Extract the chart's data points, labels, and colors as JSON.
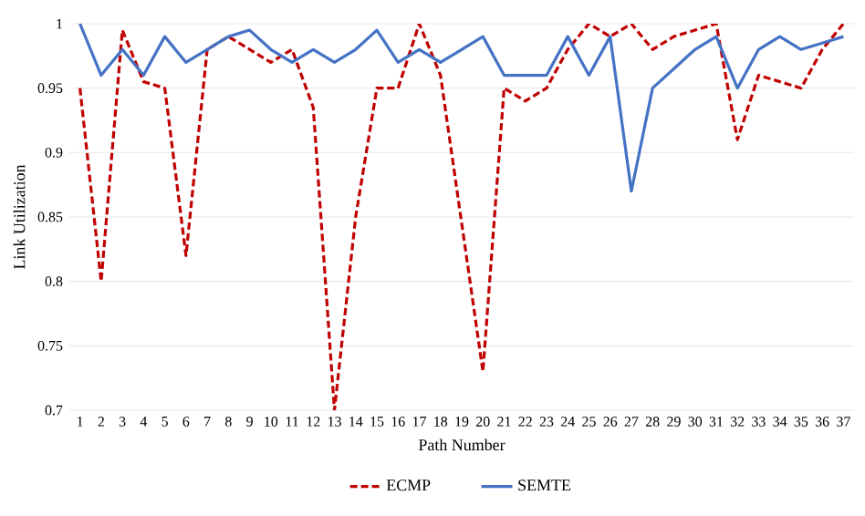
{
  "chart_data": {
    "type": "line",
    "xlabel": "Path Number",
    "ylabel": "Link Utilization",
    "categories": [
      "1",
      "2",
      "3",
      "4",
      "5",
      "6",
      "7",
      "8",
      "9",
      "10",
      "11",
      "12",
      "13",
      "14",
      "15",
      "16",
      "17",
      "18",
      "19",
      "20",
      "21",
      "22",
      "23",
      "24",
      "25",
      "26",
      "27",
      "28",
      "29",
      "30",
      "31",
      "32",
      "33",
      "34",
      "35",
      "36",
      "37"
    ],
    "series": [
      {
        "name": "ECMP",
        "color": "#c00000",
        "line_style": "dashed",
        "values": [
          0.95,
          0.8,
          0.995,
          0.955,
          0.95,
          0.82,
          0.98,
          0.99,
          0.98,
          0.97,
          0.98,
          0.935,
          0.7,
          0.85,
          0.95,
          0.95,
          1.0,
          0.96,
          0.845,
          0.73,
          0.95,
          0.94,
          0.95,
          0.98,
          1.0,
          0.99,
          1.0,
          0.98,
          0.99,
          0.995,
          1.0,
          0.91,
          0.96,
          0.955,
          0.95,
          0.98,
          1.0
        ]
      },
      {
        "name": "SEMTE",
        "color": "#4472c4",
        "line_style": "solid",
        "values": [
          1.0,
          0.96,
          0.98,
          0.96,
          0.99,
          0.97,
          0.98,
          0.99,
          0.995,
          0.98,
          0.97,
          0.98,
          0.97,
          0.98,
          0.995,
          0.97,
          0.98,
          0.97,
          0.98,
          0.99,
          0.96,
          0.96,
          0.96,
          0.99,
          0.96,
          0.99,
          0.87,
          0.95,
          0.965,
          0.98,
          0.99,
          0.95,
          0.98,
          0.99,
          0.98,
          0.985,
          0.99
        ]
      }
    ],
    "ylim": [
      0.7,
      1
    ],
    "yticks": [
      0.7,
      0.75,
      0.8,
      0.85,
      0.9,
      0.95,
      1
    ],
    "grid": "y",
    "legend": "bottom",
    "marker": "none"
  }
}
